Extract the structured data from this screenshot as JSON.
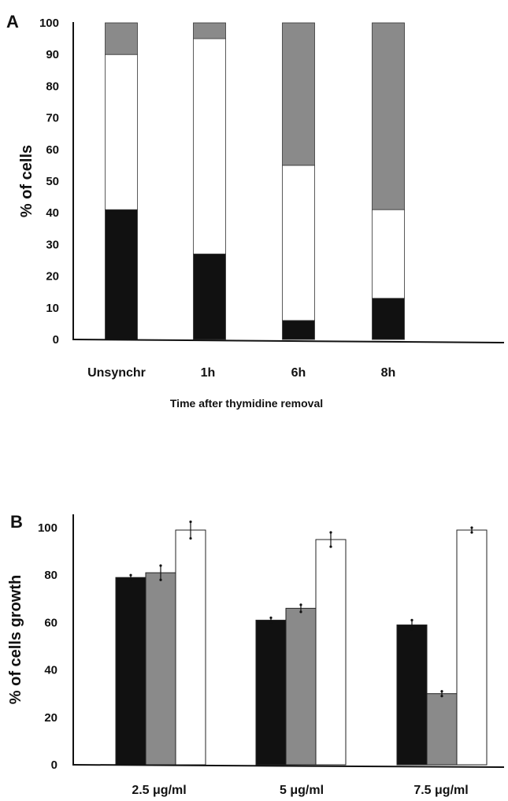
{
  "chart_data": [
    {
      "type": "bar",
      "stacked": true,
      "panel_label": "A",
      "categories": [
        "Unsynchr",
        "1h",
        "6h",
        "8h"
      ],
      "series": [
        {
          "color": "#111111",
          "values": [
            41,
            27,
            6,
            13
          ]
        },
        {
          "color": "#ffffff",
          "values": [
            49,
            68,
            49,
            28
          ]
        },
        {
          "color": "#8a8a8a",
          "values": [
            10,
            5,
            45,
            59
          ]
        }
      ],
      "ylabel": "% of cells",
      "xlabel": "Time after thymidine removal",
      "ylim": [
        0,
        100
      ],
      "yticks": [
        0,
        10,
        20,
        30,
        40,
        50,
        60,
        70,
        80,
        90,
        100
      ],
      "grid": false
    },
    {
      "type": "bar",
      "panel_label": "B",
      "categories": [
        "2.5 μg/ml",
        "5 μg/ml",
        "7.5 μg/ml"
      ],
      "series": [
        {
          "color": "#111111",
          "values": [
            79,
            61,
            59
          ],
          "errors": [
            1,
            1,
            2
          ]
        },
        {
          "color": "#8a8a8a",
          "values": [
            81,
            66,
            30
          ],
          "errors": [
            3,
            1.5,
            1
          ]
        },
        {
          "color": "#ffffff",
          "values": [
            99,
            95,
            99
          ],
          "errors": [
            3.5,
            3,
            1
          ]
        }
      ],
      "ylabel": "% of cells growth",
      "ylim": [
        0,
        100
      ],
      "yticks": [
        0,
        20,
        40,
        60,
        80,
        100
      ],
      "grid": false
    }
  ]
}
